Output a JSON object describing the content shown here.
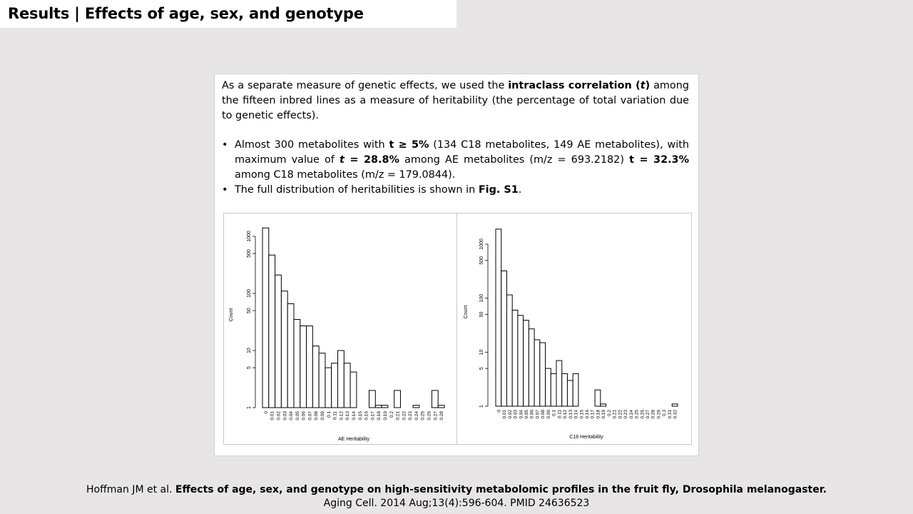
{
  "title": "Results | Effects of age, sex, and genotype",
  "paragraph": {
    "t1": "As a separate measure of genetic effects, we used the ",
    "b1": "intraclass correlation (",
    "bi1": "t",
    "b2": ")",
    "t2": " among the fifteen inbred lines as a measure of heritability (the percentage of total variation due to genetic effects)."
  },
  "bullets": [
    {
      "t1": "Almost 300 metabolites with ",
      "b1": "t ≥ 5%",
      "t2": " (134 C18 metabolites, 149 AE metabolites), with maximum value of ",
      "bi1": "t",
      "b2": " = 28.8%",
      "t3": " among AE metabolites (m/z = 693.2182) ",
      "b3": "t = 32.3%",
      "t4": " among C18 metabolites (m/z = 179.0844)."
    },
    {
      "t1": "The full distribution of heritabilities is shown in ",
      "b1": "Fig. S1",
      "t2": "."
    }
  ],
  "citation": {
    "authors": "Hoffman JM et al. ",
    "title": "Effects of age, sex, and genotype on high-sensitivity metabolomic profiles in the fruit fly, Drosophila melanogaster.",
    "journal": "Aging Cell. 2014 Aug;13(4):596-604. PMID 24636523"
  },
  "chart_data": [
    {
      "type": "bar",
      "xlabel": "AE Heritability",
      "ylabel": "Count",
      "yscale": "log",
      "yticks": [
        1,
        5,
        10,
        50,
        100,
        500,
        1000
      ],
      "categories": [
        "0",
        "0.01",
        "0.02",
        "0.03",
        "0.04",
        "0.05",
        "0.06",
        "0.07",
        "0.08",
        "0.09",
        "0.1",
        "0.11",
        "0.12",
        "0.13",
        "0.14",
        "0.15",
        "0.16",
        "0.17",
        "0.18",
        "0.19",
        "0.2",
        "0.21",
        "0.22",
        "0.23",
        "0.24",
        "0.25",
        "0.26",
        "0.27",
        "0.28"
      ],
      "values": [
        1400,
        470,
        210,
        110,
        66,
        35,
        27,
        27,
        12,
        9,
        5,
        6,
        10,
        6,
        4.2,
        0,
        0,
        2,
        1.1,
        1.1,
        0,
        2,
        0,
        0,
        1.1,
        0,
        0,
        2,
        1.1
      ]
    },
    {
      "type": "bar",
      "xlabel": "C18 Heritability",
      "ylabel": "Count",
      "yscale": "log",
      "yticks": [
        1,
        5,
        10,
        50,
        100,
        500,
        1000
      ],
      "categories": [
        "0",
        "0.01",
        "0.02",
        "0.03",
        "0.04",
        "0.05",
        "0.06",
        "0.07",
        "0.08",
        "0.09",
        "0.1",
        "0.11",
        "0.12",
        "0.13",
        "0.14",
        "0.15",
        "0.16",
        "0.17",
        "0.18",
        "0.19",
        "0.2",
        "0.21",
        "0.22",
        "0.23",
        "0.24",
        "0.25",
        "0.26",
        "0.27",
        "0.28",
        "0.29",
        "0.3",
        "0.31",
        "0.32"
      ],
      "values": [
        1900,
        320,
        115,
        60,
        48,
        39,
        27,
        17,
        15,
        5,
        4,
        7,
        4,
        3,
        4,
        0,
        0,
        0,
        2,
        1.1,
        0,
        0,
        0,
        0,
        0,
        0,
        0,
        0,
        0,
        0,
        0,
        0,
        1.1
      ]
    }
  ]
}
